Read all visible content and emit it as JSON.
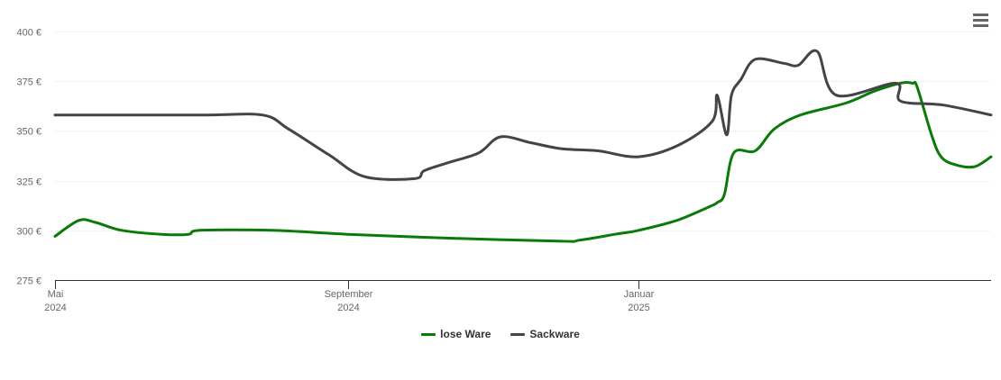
{
  "chart_data": {
    "type": "line",
    "y_ticks": [
      "400 €",
      "375 €",
      "350 €",
      "325 €",
      "300 €",
      "275 €"
    ],
    "y_tick_values": [
      400,
      375,
      350,
      325,
      300,
      275
    ],
    "ylim": [
      275,
      400
    ],
    "x_ticks": [
      {
        "date": "2024-05-01",
        "label1": "Mai",
        "label2": "2024"
      },
      {
        "date": "2024-09-01",
        "label1": "September",
        "label2": "2024"
      },
      {
        "date": "2025-01-01",
        "label1": "Januar",
        "label2": "2025"
      }
    ],
    "xlim": [
      "2024-05-01",
      "2025-05-29"
    ],
    "grid": true,
    "legend_position": "bottom-center",
    "series": [
      {
        "name": "lose Ware",
        "color": "#0a7a0a",
        "points": [
          [
            "2024-05-01",
            297
          ],
          [
            "2024-05-11",
            305
          ],
          [
            "2024-05-18",
            304
          ],
          [
            "2024-05-29",
            300
          ],
          [
            "2024-06-15",
            298
          ],
          [
            "2024-06-26",
            298
          ],
          [
            "2024-07-01",
            300
          ],
          [
            "2024-07-31",
            300
          ],
          [
            "2024-09-01",
            298
          ],
          [
            "2024-10-15",
            296
          ],
          [
            "2024-11-30",
            294.5
          ],
          [
            "2024-12-07",
            295
          ],
          [
            "2024-12-22",
            298
          ],
          [
            "2025-01-01",
            300
          ],
          [
            "2025-01-17",
            305
          ],
          [
            "2025-01-31",
            312
          ],
          [
            "2025-02-03",
            314
          ],
          [
            "2025-02-06",
            318
          ],
          [
            "2025-02-10",
            339
          ],
          [
            "2025-02-19",
            340
          ],
          [
            "2025-02-27",
            351
          ],
          [
            "2025-03-10",
            358
          ],
          [
            "2025-03-29",
            364
          ],
          [
            "2025-04-10",
            370
          ],
          [
            "2025-04-21",
            374
          ],
          [
            "2025-04-26",
            374
          ],
          [
            "2025-04-28",
            372
          ],
          [
            "2025-05-04",
            348
          ],
          [
            "2025-05-08",
            337
          ],
          [
            "2025-05-14",
            333
          ],
          [
            "2025-05-22",
            332
          ],
          [
            "2025-05-29",
            337
          ]
        ]
      },
      {
        "name": "Sackware",
        "color": "#434348",
        "points": [
          [
            "2024-05-01",
            358
          ],
          [
            "2024-07-01",
            358
          ],
          [
            "2024-07-27",
            358
          ],
          [
            "2024-08-07",
            351
          ],
          [
            "2024-08-24",
            338
          ],
          [
            "2024-09-08",
            327
          ],
          [
            "2024-09-29",
            326
          ],
          [
            "2024-10-03",
            330
          ],
          [
            "2024-10-13",
            334
          ],
          [
            "2024-10-26",
            339
          ],
          [
            "2024-11-04",
            347
          ],
          [
            "2024-11-17",
            344
          ],
          [
            "2024-11-30",
            341
          ],
          [
            "2024-12-15",
            340
          ],
          [
            "2025-01-01",
            337
          ],
          [
            "2025-01-18",
            343
          ],
          [
            "2025-02-01",
            355
          ],
          [
            "2025-02-03",
            368
          ],
          [
            "2025-02-07",
            348
          ],
          [
            "2025-02-09",
            368
          ],
          [
            "2025-02-13",
            376
          ],
          [
            "2025-02-19",
            386
          ],
          [
            "2025-03-03",
            384
          ],
          [
            "2025-03-09",
            383
          ],
          [
            "2025-03-17",
            390
          ],
          [
            "2025-03-25",
            368
          ],
          [
            "2025-04-19",
            374
          ],
          [
            "2025-04-21",
            365
          ],
          [
            "2025-05-09",
            363
          ],
          [
            "2025-05-29",
            358
          ]
        ]
      }
    ]
  },
  "legend": {
    "items": [
      {
        "label": "lose Ware",
        "color": "#0a7a0a"
      },
      {
        "label": "Sackware",
        "color": "#434348"
      }
    ]
  },
  "menu": {
    "icon": "hamburger-menu-icon"
  }
}
